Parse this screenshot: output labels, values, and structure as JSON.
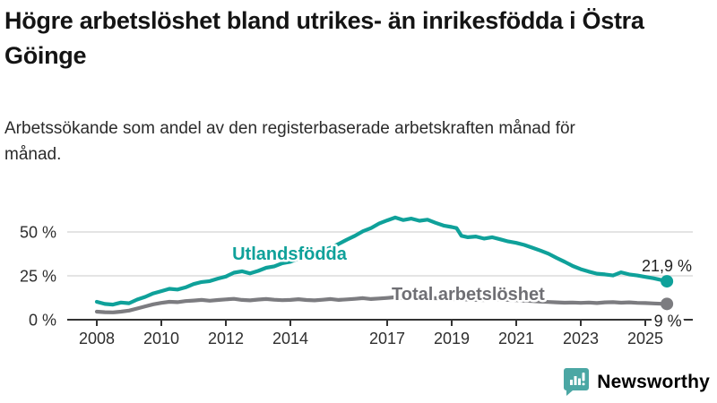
{
  "header": {
    "title": "Högre arbetslöshet bland utrikes- än inrikesfödda i Östra Göinge",
    "subtitle": "Arbetssökande som andel av den registerbaserade arbetskraften månad för månad."
  },
  "chart_data": {
    "type": "line",
    "title": "Högre arbetslöshet bland utrikes- än inrikesfödda i Östra Göinge",
    "unit": "%",
    "grid": true,
    "legend_position": "inline-labels",
    "x_axis": {
      "range": [
        2008,
        2025.75
      ],
      "ticks": [
        {
          "value": 2008,
          "label": "2008"
        },
        {
          "value": 2010,
          "label": "2010"
        },
        {
          "value": 2012,
          "label": "2012"
        },
        {
          "value": 2014,
          "label": "2014"
        },
        {
          "value": 2017,
          "label": "2017"
        },
        {
          "value": 2019,
          "label": "2019"
        },
        {
          "value": 2021,
          "label": "2021"
        },
        {
          "value": 2023,
          "label": "2023"
        },
        {
          "value": 2025,
          "label": "2025"
        }
      ]
    },
    "y_axis": {
      "range": [
        0,
        62
      ],
      "ticks": [
        {
          "value": 0,
          "label": "0 %"
        },
        {
          "value": 25,
          "label": "25 %"
        },
        {
          "value": 50,
          "label": "50 %"
        }
      ]
    },
    "series": [
      {
        "id": "utlandsfodda",
        "name": "Utlandsfödda",
        "color": "#0FA19A",
        "end_label": "21,9 %",
        "end_value": 21.9,
        "points": [
          [
            2008.0,
            10.2
          ],
          [
            2008.25,
            9.0
          ],
          [
            2008.5,
            8.6
          ],
          [
            2008.75,
            9.8
          ],
          [
            2009.0,
            9.4
          ],
          [
            2009.25,
            11.5
          ],
          [
            2009.5,
            13.0
          ],
          [
            2009.75,
            15.0
          ],
          [
            2010.0,
            16.3
          ],
          [
            2010.25,
            17.6
          ],
          [
            2010.5,
            17.2
          ],
          [
            2010.75,
            18.4
          ],
          [
            2011.0,
            20.3
          ],
          [
            2011.25,
            21.5
          ],
          [
            2011.5,
            22.0
          ],
          [
            2011.75,
            23.4
          ],
          [
            2012.0,
            24.6
          ],
          [
            2012.25,
            26.8
          ],
          [
            2012.5,
            27.6
          ],
          [
            2012.75,
            26.4
          ],
          [
            2013.0,
            27.8
          ],
          [
            2013.25,
            29.6
          ],
          [
            2013.5,
            30.4
          ],
          [
            2013.75,
            32.2
          ],
          [
            2014.0,
            33.0
          ],
          [
            2014.25,
            34.8
          ],
          [
            2014.5,
            35.4
          ],
          [
            2014.75,
            37.6
          ],
          [
            2015.0,
            39.4
          ],
          [
            2015.25,
            41.0
          ],
          [
            2015.5,
            43.2
          ],
          [
            2015.75,
            45.6
          ],
          [
            2016.0,
            47.8
          ],
          [
            2016.25,
            50.4
          ],
          [
            2016.5,
            52.2
          ],
          [
            2016.75,
            54.8
          ],
          [
            2017.0,
            56.6
          ],
          [
            2017.25,
            58.2
          ],
          [
            2017.5,
            56.8
          ],
          [
            2017.75,
            57.6
          ],
          [
            2018.0,
            56.4
          ],
          [
            2018.25,
            57.0
          ],
          [
            2018.5,
            55.2
          ],
          [
            2018.75,
            53.6
          ],
          [
            2019.0,
            52.8
          ],
          [
            2019.15,
            52.2
          ],
          [
            2019.3,
            47.8
          ],
          [
            2019.5,
            47.0
          ],
          [
            2019.75,
            47.4
          ],
          [
            2020.0,
            46.2
          ],
          [
            2020.25,
            47.0
          ],
          [
            2020.5,
            45.8
          ],
          [
            2020.75,
            44.6
          ],
          [
            2021.0,
            43.8
          ],
          [
            2021.25,
            42.6
          ],
          [
            2021.5,
            41.0
          ],
          [
            2021.75,
            39.4
          ],
          [
            2022.0,
            37.6
          ],
          [
            2022.25,
            35.2
          ],
          [
            2022.5,
            33.0
          ],
          [
            2022.75,
            30.6
          ],
          [
            2023.0,
            28.8
          ],
          [
            2023.25,
            27.4
          ],
          [
            2023.5,
            26.2
          ],
          [
            2023.75,
            25.8
          ],
          [
            2024.0,
            25.2
          ],
          [
            2024.25,
            27.0
          ],
          [
            2024.5,
            25.8
          ],
          [
            2024.75,
            25.2
          ],
          [
            2025.0,
            24.4
          ],
          [
            2025.25,
            23.6
          ],
          [
            2025.5,
            22.6
          ],
          [
            2025.67,
            21.9
          ]
        ]
      },
      {
        "id": "total",
        "name": "Total arbetslöshet",
        "color": "#7C7C80",
        "label_color": "#6F6F74",
        "end_label": "9 %",
        "end_value": 9.0,
        "points": [
          [
            2008.0,
            4.6
          ],
          [
            2008.25,
            4.3
          ],
          [
            2008.5,
            4.2
          ],
          [
            2008.75,
            4.6
          ],
          [
            2009.0,
            5.2
          ],
          [
            2009.25,
            6.4
          ],
          [
            2009.5,
            7.6
          ],
          [
            2009.75,
            8.8
          ],
          [
            2010.0,
            9.6
          ],
          [
            2010.25,
            10.2
          ],
          [
            2010.5,
            10.0
          ],
          [
            2010.75,
            10.6
          ],
          [
            2011.0,
            10.9
          ],
          [
            2011.25,
            11.3
          ],
          [
            2011.5,
            10.8
          ],
          [
            2011.75,
            11.2
          ],
          [
            2012.0,
            11.6
          ],
          [
            2012.25,
            11.9
          ],
          [
            2012.5,
            11.3
          ],
          [
            2012.75,
            11.0
          ],
          [
            2013.0,
            11.5
          ],
          [
            2013.25,
            11.8
          ],
          [
            2013.5,
            11.4
          ],
          [
            2013.75,
            11.1
          ],
          [
            2014.0,
            11.3
          ],
          [
            2014.25,
            11.7
          ],
          [
            2014.5,
            11.2
          ],
          [
            2014.75,
            11.0
          ],
          [
            2015.0,
            11.4
          ],
          [
            2015.25,
            11.8
          ],
          [
            2015.5,
            11.3
          ],
          [
            2015.75,
            11.6
          ],
          [
            2016.0,
            11.9
          ],
          [
            2016.25,
            12.3
          ],
          [
            2016.5,
            11.8
          ],
          [
            2016.75,
            12.1
          ],
          [
            2017.0,
            12.4
          ],
          [
            2017.25,
            12.8
          ],
          [
            2017.5,
            12.3
          ],
          [
            2017.75,
            12.6
          ],
          [
            2018.0,
            12.4
          ],
          [
            2018.25,
            12.1
          ],
          [
            2018.5,
            12.3
          ],
          [
            2018.75,
            11.9
          ],
          [
            2019.0,
            11.7
          ],
          [
            2019.25,
            11.9
          ],
          [
            2019.5,
            11.5
          ],
          [
            2019.75,
            11.3
          ],
          [
            2020.0,
            11.2
          ],
          [
            2020.25,
            11.9
          ],
          [
            2020.5,
            11.6
          ],
          [
            2020.75,
            11.3
          ],
          [
            2021.0,
            11.1
          ],
          [
            2021.25,
            10.8
          ],
          [
            2021.5,
            10.6
          ],
          [
            2021.75,
            10.3
          ],
          [
            2022.0,
            10.1
          ],
          [
            2022.25,
            9.9
          ],
          [
            2022.5,
            9.7
          ],
          [
            2022.75,
            9.8
          ],
          [
            2023.0,
            9.6
          ],
          [
            2023.25,
            9.8
          ],
          [
            2023.5,
            9.5
          ],
          [
            2023.75,
            9.9
          ],
          [
            2024.0,
            10.0
          ],
          [
            2024.25,
            9.7
          ],
          [
            2024.5,
            9.9
          ],
          [
            2024.75,
            9.6
          ],
          [
            2025.0,
            9.5
          ],
          [
            2025.25,
            9.3
          ],
          [
            2025.5,
            9.1
          ],
          [
            2025.67,
            9.0
          ]
        ]
      }
    ]
  },
  "colors": {
    "accent_teal": "#0FA19A",
    "total_gray": "#7C7C80",
    "total_label_gray": "#6F6F74",
    "axis": "#333333",
    "gridline": "#DBDBDB",
    "tick_text": "#2E2E2E",
    "brand_text": "#3B9E9B",
    "brand_icon": "#4BA7A4"
  },
  "branding": {
    "name": "Newsworthy",
    "icon": "bar-chart-speech-bubble-icon"
  }
}
